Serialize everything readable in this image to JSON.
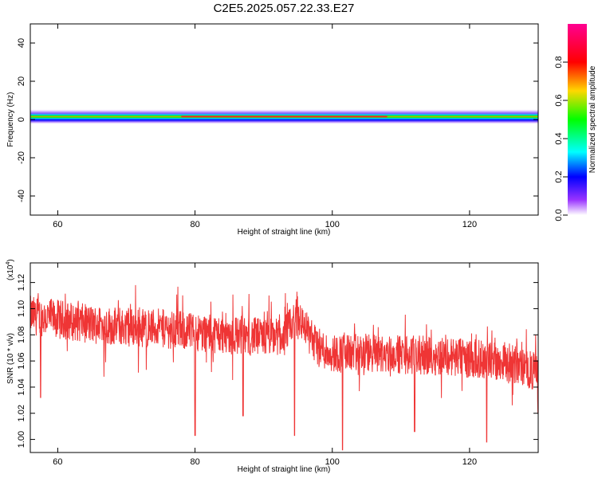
{
  "title": "C2E5.2025.057.22.33.E27",
  "colors": {
    "snr_line": "#ef3535",
    "background": "#ffffff",
    "axes": "#000000"
  },
  "chart_data": [
    {
      "type": "heatmap",
      "xlabel": "Height of straight line (km)",
      "ylabel": "Frequency (Hz)",
      "xlim": [
        56,
        130
      ],
      "ylim": [
        -50,
        50
      ],
      "xticks": [
        60,
        80,
        100,
        120
      ],
      "yticks": [
        -40,
        -20,
        0,
        20,
        40
      ],
      "band_center_hz": 1.5,
      "band_halfwidth_hz": {
        "core": 1.5,
        "faint_edge": 4
      },
      "colormap": [
        "#ff00ff",
        "#ff0000",
        "#ffd700",
        "#00ff00",
        "#00ffff",
        "#0000ff",
        "#9933ff",
        "#ffffff"
      ],
      "colorbar": {
        "label": "Normalized spectral amplitude",
        "range": [
          0.0,
          1.0
        ],
        "ticks": [
          "0.0",
          "0.2",
          "0.4",
          "0.6",
          "0.8"
        ]
      }
    },
    {
      "type": "line",
      "xlabel": "Height of straight line (km)",
      "ylabel": "SNR (10 * v/v)",
      "scale_label": "(x10",
      "scale_exponent": "4",
      "xlim": [
        56,
        130
      ],
      "ylim": [
        0.99,
        1.135
      ],
      "xticks": [
        60,
        80,
        100,
        120
      ],
      "yticks": [
        "1.00",
        "1.02",
        "1.04",
        "1.06",
        "1.08",
        "1.10",
        "1.12"
      ],
      "series": [
        {
          "values_x1e4": {
            "x": [
              56,
              60,
              65,
              70,
              75,
              80,
              85,
              90,
              93,
              95,
              96,
              98,
              100,
              105,
              110,
              115,
              120,
              125,
              128,
              130
            ],
            "y": [
              1.095,
              1.092,
              1.088,
              1.086,
              1.085,
              1.082,
              1.08,
              1.078,
              1.079,
              1.095,
              1.085,
              1.07,
              1.066,
              1.066,
              1.065,
              1.064,
              1.062,
              1.06,
              1.055,
              1.05
            ]
          },
          "dips": [
            {
              "x": 57.5,
              "y": 1.032
            },
            {
              "x": 80,
              "y": 1.003
            },
            {
              "x": 87,
              "y": 1.018
            },
            {
              "x": 94.5,
              "y": 1.003
            },
            {
              "x": 101.5,
              "y": 0.992
            },
            {
              "x": 112,
              "y": 1.006
            },
            {
              "x": 122.5,
              "y": 0.998
            },
            {
              "x": 130,
              "y": 1.02
            }
          ]
        }
      ]
    }
  ]
}
